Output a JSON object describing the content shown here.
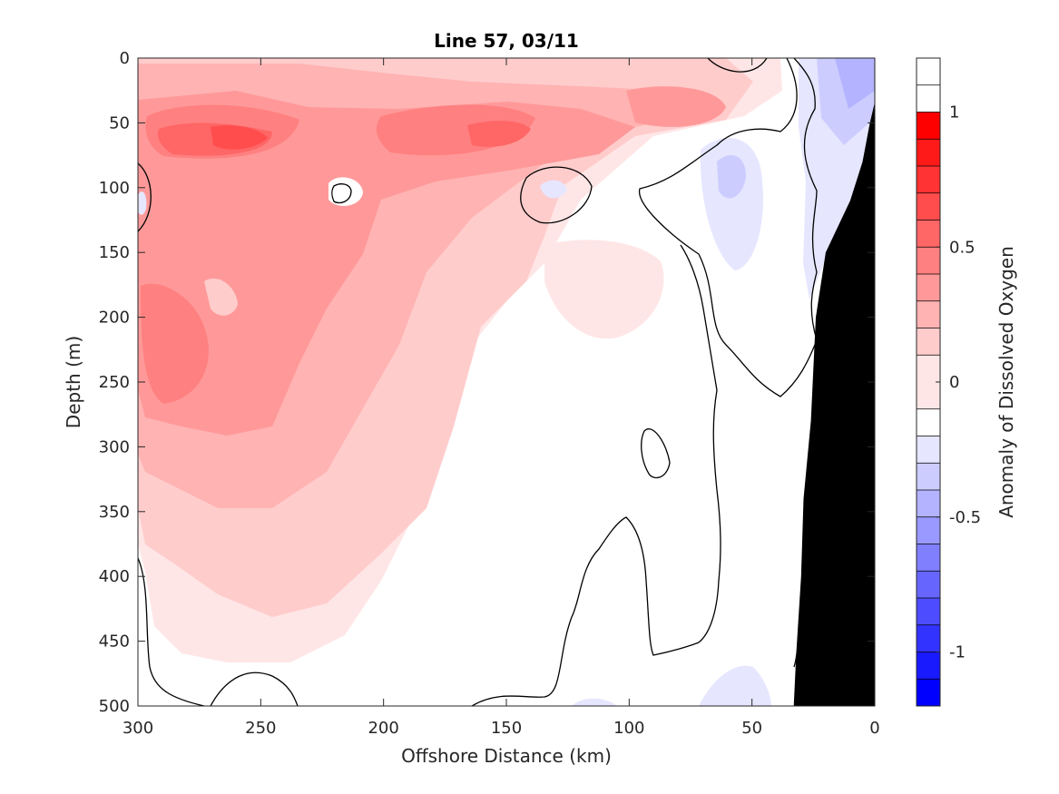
{
  "chart_data": {
    "type": "heatmap",
    "title": "Line 57, 03/11",
    "xlabel": "Offshore Distance (km)",
    "ylabel": "Depth (m)",
    "xlim": [
      300,
      0
    ],
    "ylim": [
      0,
      500
    ],
    "x_reversed": true,
    "y_reversed": true,
    "xticks": [
      300,
      250,
      200,
      150,
      100,
      50,
      0
    ],
    "yticks": [
      0,
      50,
      100,
      150,
      200,
      250,
      300,
      350,
      400,
      450,
      500
    ],
    "colorbar": {
      "label": "Anomaly of Dissolved Oxygen",
      "clim": [
        -1.2,
        1.2
      ],
      "ticks": [
        1,
        0.5,
        0,
        -0.5,
        -1
      ],
      "levels": [
        -1.2,
        -1.1,
        -1.0,
        -0.9,
        -0.8,
        -0.7,
        -0.6,
        -0.5,
        -0.4,
        -0.3,
        -0.2,
        -0.1,
        0.1,
        0.2,
        0.3,
        0.4,
        0.5,
        0.6,
        0.7,
        0.8,
        0.9,
        1.0,
        1.1,
        1.2
      ],
      "colors": [
        "#0000ff",
        "#1a1aff",
        "#3333ff",
        "#4d4dff",
        "#6666ff",
        "#8080ff",
        "#9999ff",
        "#b3b3ff",
        "#ccccff",
        "#e6e6ff",
        "#ffffff",
        "#ffe6e6",
        "#ffcccc",
        "#ffb3b3",
        "#ff9999",
        "#ff8080",
        "#ff6666",
        "#ff4d4d",
        "#ff3333",
        "#ff1a1a",
        "#ff0000"
      ]
    },
    "contour_level": 0,
    "bathymetry_color": "#000000",
    "bathymetry": [
      {
        "x": 33,
        "depth": 500
      },
      {
        "x": 32,
        "depth": 460
      },
      {
        "x": 30,
        "depth": 400
      },
      {
        "x": 29,
        "depth": 340
      },
      {
        "x": 26,
        "depth": 280
      },
      {
        "x": 24,
        "depth": 200
      },
      {
        "x": 20,
        "depth": 150
      },
      {
        "x": 10,
        "depth": 110
      },
      {
        "x": 5,
        "depth": 80
      },
      {
        "x": 2,
        "depth": 50
      },
      {
        "x": 0,
        "depth": 34
      }
    ]
  }
}
